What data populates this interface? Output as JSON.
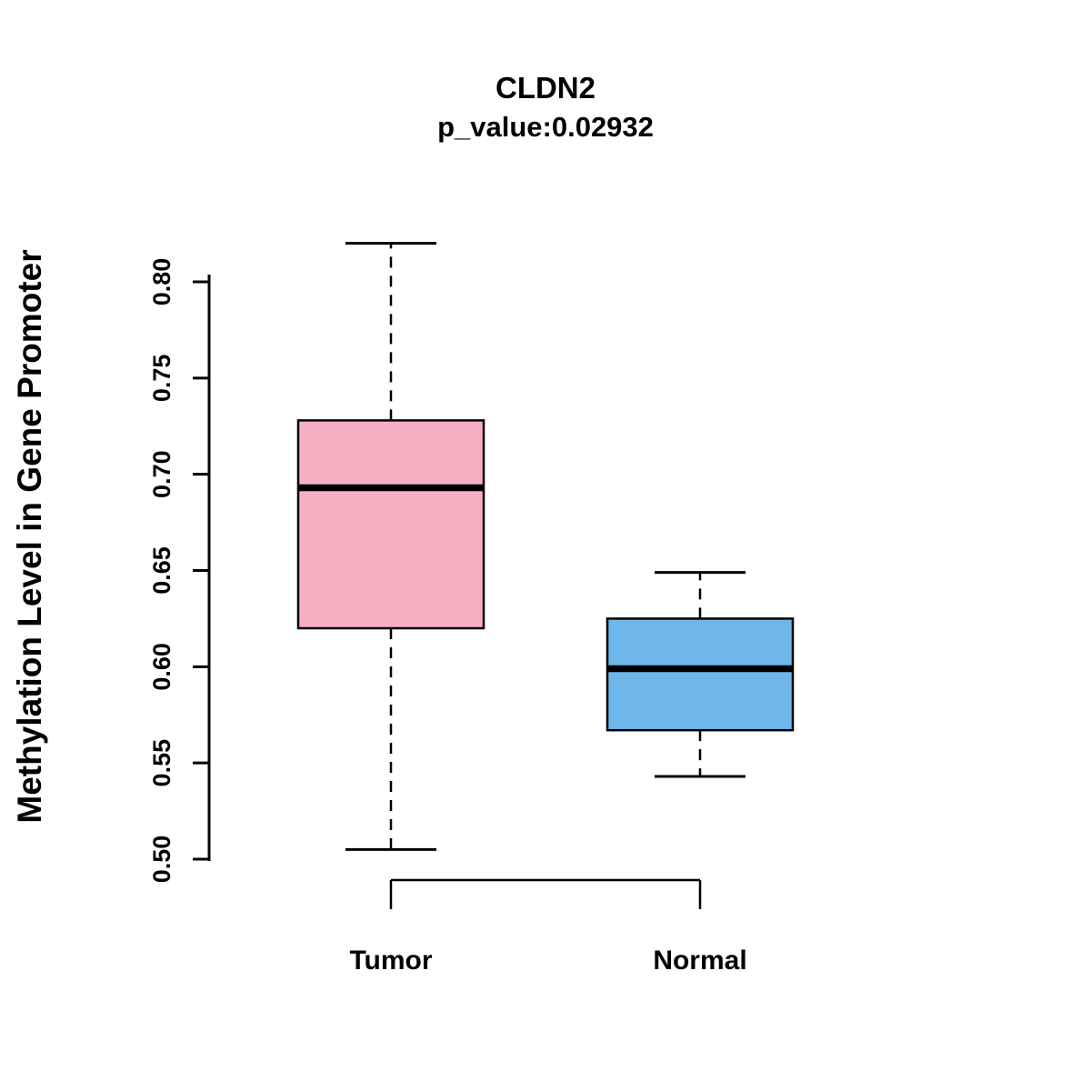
{
  "chart_data": {
    "type": "boxplot",
    "title": "CLDN2",
    "subtitle": "p_value:0.02932",
    "ylabel": "Methylation Level in Gene Promoter",
    "xlabel": "",
    "categories": [
      "Tumor",
      "Normal"
    ],
    "yticks": [
      0.5,
      0.55,
      0.6,
      0.65,
      0.7,
      0.75,
      0.8
    ],
    "ylim": [
      0.48,
      0.84
    ],
    "grid": false,
    "legend": "none",
    "series": [
      {
        "name": "Tumor",
        "min": 0.505,
        "q1": 0.62,
        "median": 0.693,
        "q3": 0.728,
        "max": 0.82,
        "fill_color": "#F9AFC3"
      },
      {
        "name": "Normal",
        "min": 0.543,
        "q1": 0.567,
        "median": 0.599,
        "q3": 0.625,
        "max": 0.649,
        "fill_color": "#6FB7EA"
      }
    ],
    "stroke_color": "#000000",
    "background_color": "#FFFFFF"
  }
}
